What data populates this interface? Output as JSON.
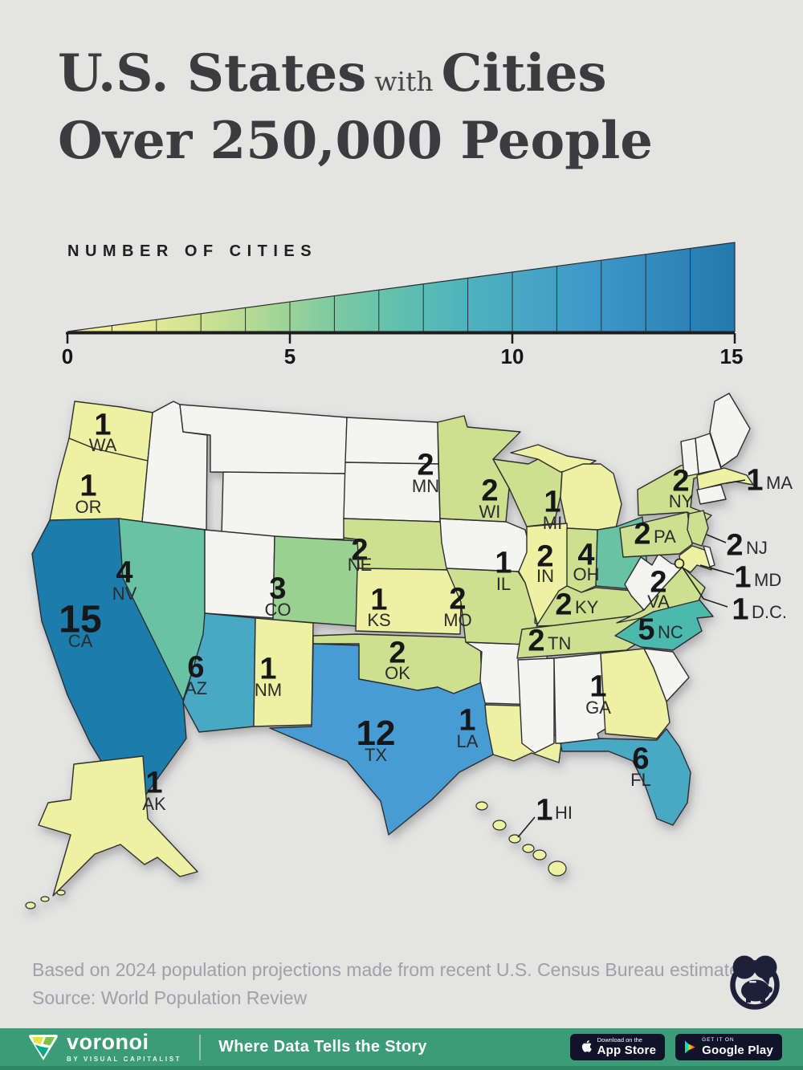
{
  "title": {
    "segment1": "U.S. States",
    "connector": "with",
    "segment2": "Cities",
    "line2": "Over 250,000 People"
  },
  "legend": {
    "label": "NUMBER OF CITIES",
    "tick_labels": [
      "0",
      "5",
      "10",
      "15"
    ],
    "gradient": [
      "#f7f295",
      "#e9ec96",
      "#cfe292",
      "#a9d795",
      "#7ccaa1",
      "#5fc0ad",
      "#4fb2bd",
      "#47a4c6",
      "#3d96c9",
      "#2f88b9",
      "#2379ab"
    ]
  },
  "color_scale": {
    "0": "#f4f4f1",
    "1": "#eef0a2",
    "2": "#cde08f",
    "3": "#9ad193",
    "4": "#68c2a3",
    "5": "#4cb9ae",
    "6": "#48a9c4",
    "12": "#479cd3",
    "15": "#1b7cab"
  },
  "chart_data": {
    "type": "choropleth",
    "title": "U.S. States with Cities Over 250,000 People",
    "metric": "Number of cities with over 250,000 people",
    "scale_range": [
      0,
      15
    ],
    "states": [
      {
        "abbr": "WA",
        "cities": 1
      },
      {
        "abbr": "OR",
        "cities": 1
      },
      {
        "abbr": "CA",
        "cities": 15
      },
      {
        "abbr": "NV",
        "cities": 4
      },
      {
        "abbr": "AZ",
        "cities": 6
      },
      {
        "abbr": "NM",
        "cities": 1
      },
      {
        "abbr": "AK",
        "cities": 1
      },
      {
        "abbr": "HI",
        "cities": 1
      },
      {
        "abbr": "CO",
        "cities": 3
      },
      {
        "abbr": "TX",
        "cities": 12
      },
      {
        "abbr": "OK",
        "cities": 2
      },
      {
        "abbr": "KS",
        "cities": 1
      },
      {
        "abbr": "NE",
        "cities": 2
      },
      {
        "abbr": "MN",
        "cities": 2
      },
      {
        "abbr": "MO",
        "cities": 2
      },
      {
        "abbr": "LA",
        "cities": 1
      },
      {
        "abbr": "WI",
        "cities": 2
      },
      {
        "abbr": "IL",
        "cities": 1
      },
      {
        "abbr": "MI",
        "cities": 1
      },
      {
        "abbr": "IN",
        "cities": 2
      },
      {
        "abbr": "OH",
        "cities": 4
      },
      {
        "abbr": "KY",
        "cities": 2
      },
      {
        "abbr": "TN",
        "cities": 2
      },
      {
        "abbr": "VA",
        "cities": 2
      },
      {
        "abbr": "NC",
        "cities": 5
      },
      {
        "abbr": "GA",
        "cities": 1
      },
      {
        "abbr": "FL",
        "cities": 6
      },
      {
        "abbr": "NY",
        "cities": 2
      },
      {
        "abbr": "PA",
        "cities": 2
      },
      {
        "abbr": "MA",
        "cities": 1
      },
      {
        "abbr": "NJ",
        "cities": 2
      },
      {
        "abbr": "MD",
        "cities": 1
      },
      {
        "abbr": "D.C.",
        "cities": 1
      }
    ]
  },
  "footer": {
    "line1": "Based on 2024 population projections made from recent U.S. Census Bureau estimates.",
    "line2": "Source: World Population Review"
  },
  "bottom_bar": {
    "brand": "voronoi",
    "brand_sub": "BY VISUAL CAPITALIST",
    "tagline": "Where Data Tells the Story",
    "app_store_top": "Download on the",
    "app_store_bottom": "App Store",
    "google_play_top": "GET IT ON",
    "google_play_bottom": "Google Play"
  }
}
